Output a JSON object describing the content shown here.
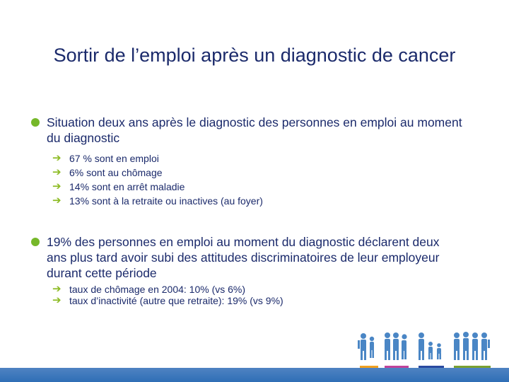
{
  "slide": {
    "title": "Sortir de l’emploi après un diagnostic de cancer",
    "bullets": [
      {
        "text": "Situation deux ans après le diagnostic des personnes en emploi au moment du diagnostic",
        "subitems": [
          "67 % sont en emploi",
          "6% sont au chômage",
          "14% sont en arrêt maladie",
          "13% sont à la retraite ou inactives (au foyer)"
        ]
      },
      {
        "text": "19% des personnes en emploi au moment du diagnostic déclarent deux ans plus tard avoir subi des attitudes discriminatoires de leur employeur durant cette période",
        "subitems": [
          "taux de chômage en 2004: 10% (vs 6%)",
          "taux d’inactivité (autre que retraite): 19% (vs 9%)"
        ]
      }
    ]
  },
  "icons": {
    "bullet": "round-bullet-icon",
    "subbullet": "right-arrow-icon",
    "logo": "people-figures-logo"
  },
  "colors": {
    "text": "#1b2a6b",
    "bullet": "#76b82a",
    "arrow": "#8dbb24",
    "bottom_bar": "#2f6fb6",
    "logo_underlines": [
      "#f0a020",
      "#c0439a",
      "#2a4aa0",
      "#7aa030"
    ]
  }
}
